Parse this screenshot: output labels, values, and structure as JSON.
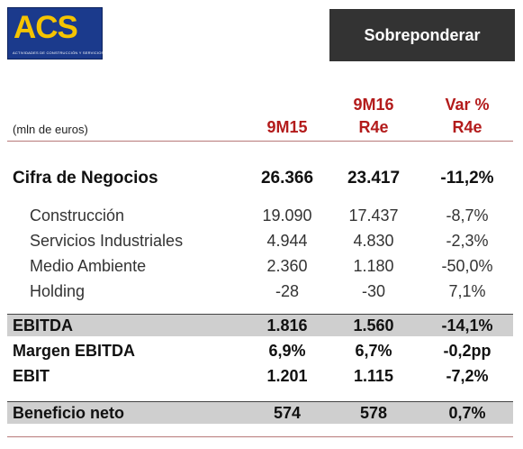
{
  "logo": {
    "text": "ACS",
    "tagline": "ACTIVIDADES DE CONSTRUCCIÓN Y SERVICIOS"
  },
  "rating": "Sobreponderar",
  "unit_label": "(mln de euros)",
  "columns": [
    {
      "line1": "",
      "line2": "9M15"
    },
    {
      "line1": "9M16",
      "line2": "R4e"
    },
    {
      "line1": "Var %",
      "line2": "R4e"
    }
  ],
  "rows": [
    {
      "label": "Cifra de Negocios",
      "v1": "26.366",
      "v2": "23.417",
      "v3": "-11,2%"
    },
    {
      "label": "Construcción",
      "v1": "19.090",
      "v2": "17.437",
      "v3": "-8,7%"
    },
    {
      "label": "Servicios Industriales",
      "v1": "4.944",
      "v2": "4.830",
      "v3": "-2,3%"
    },
    {
      "label": "Medio Ambiente",
      "v1": "2.360",
      "v2": "1.180",
      "v3": "-50,0%"
    },
    {
      "label": "Holding",
      "v1": "-28",
      "v2": "-30",
      "v3": "7,1%"
    },
    {
      "label": "EBITDA",
      "v1": "1.816",
      "v2": "1.560",
      "v3": "-14,1%"
    },
    {
      "label": "Margen EBITDA",
      "v1": "6,9%",
      "v2": "6,7%",
      "v3": "-0,2pp"
    },
    {
      "label": "EBIT",
      "v1": "1.201",
      "v2": "1.115",
      "v3": "-7,2%"
    },
    {
      "label": "Beneficio neto",
      "v1": "574",
      "v2": "578",
      "v3": "0,7%"
    }
  ],
  "colors": {
    "header_red": "#b31b1b",
    "rating_bg": "#333333",
    "shade": "#cfcfcf",
    "logo_blue": "#1b3a8c",
    "logo_yellow": "#f5c400"
  }
}
